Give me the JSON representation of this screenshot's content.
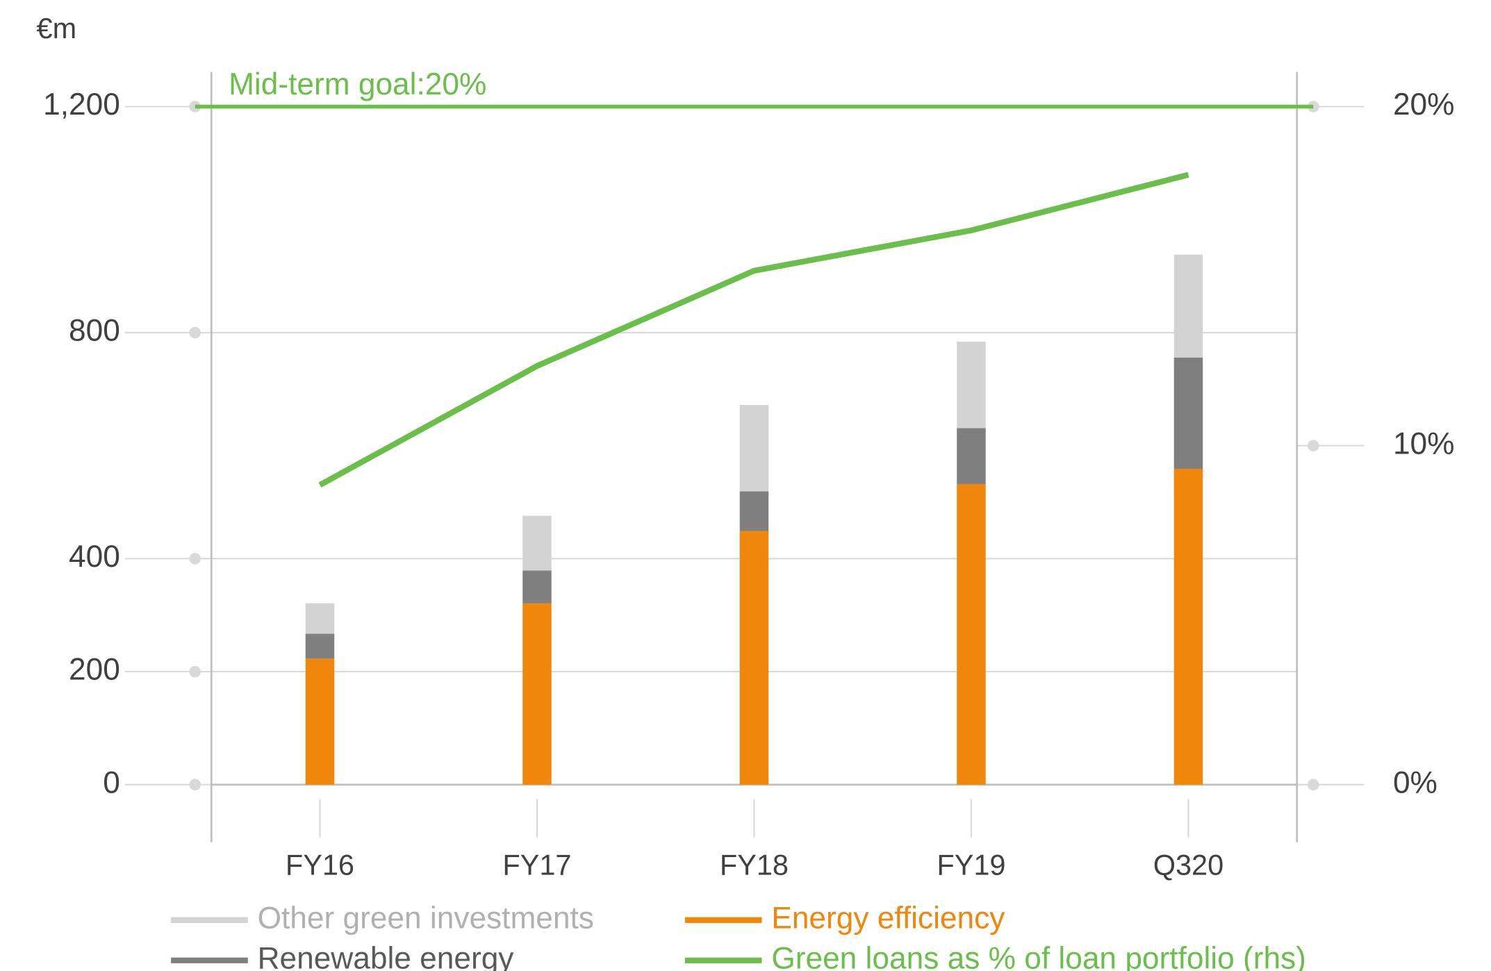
{
  "chart_data": {
    "type": "bar",
    "stacked": true,
    "ylabel": "€m",
    "categories": [
      "FY16",
      "FY17",
      "FY18",
      "FY19",
      "Q320"
    ],
    "series": [
      {
        "name": "Energy efficiency",
        "color": "#f0860a",
        "values": [
          223,
          321,
          449,
          532,
          559
        ]
      },
      {
        "name": "Renewable energy",
        "color": "#7f7f7f",
        "values": [
          44,
          58,
          70,
          99,
          197
        ]
      },
      {
        "name": "Other green investments",
        "color": "#d3d3d3",
        "values": [
          54,
          97,
          153,
          153,
          182
        ]
      },
      {
        "name": "Green loans as % of loan portfolio (rhs)",
        "color": "#6abf4b",
        "type": "line",
        "axis": "y2",
        "values": [
          8.84,
          12.35,
          15.16,
          16.35,
          17.99
        ]
      }
    ],
    "annotations": [
      {
        "text": "Mid-term goal:20%",
        "value": 20,
        "axis": "y2",
        "color": "#6abf4b"
      }
    ],
    "ylim": [
      0,
      1200
    ],
    "yticks": [
      0,
      200,
      400,
      800,
      {
        "value": 1200,
        "label": "1,200"
      }
    ],
    "y2lim": [
      0,
      20
    ],
    "y2ticks": [
      {
        "value": 0,
        "label": "0%"
      },
      {
        "value": 10,
        "label": "10%"
      },
      {
        "value": 20,
        "label": "20%"
      }
    ],
    "grid": true
  }
}
